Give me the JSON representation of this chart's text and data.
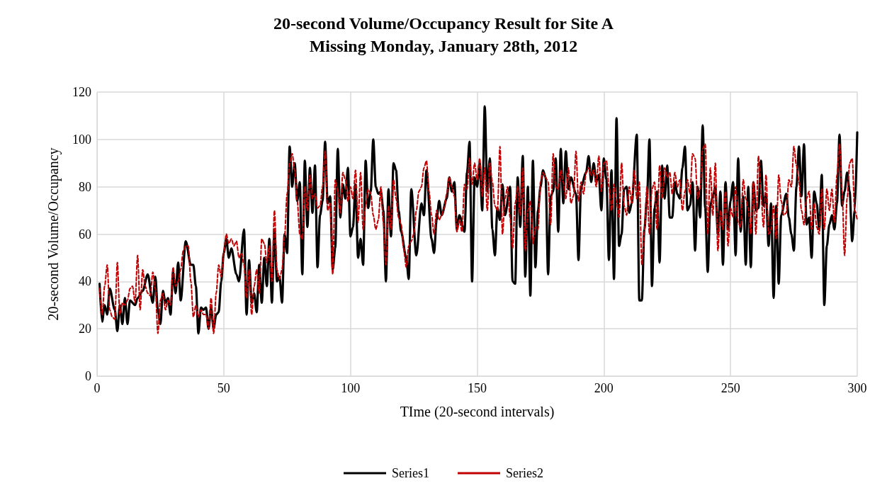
{
  "chart_data": {
    "type": "line",
    "title": "20-second Volume/Occupancy Result for Site A",
    "subtitle": "Missing Monday, January 28th, 2012",
    "xlabel": "TIme (20-second intervals)",
    "ylabel": "20-second Volume/Occupancy",
    "xlim": [
      0,
      300
    ],
    "xticks": [
      0,
      50,
      100,
      150,
      200,
      250,
      300
    ],
    "ylim": [
      0,
      120
    ],
    "yticks": [
      0,
      20,
      40,
      60,
      80,
      100,
      120
    ],
    "grid": true,
    "legend": "bottom",
    "marker": "none",
    "x": [
      1,
      2,
      3,
      4,
      5,
      6,
      7,
      8,
      9,
      10,
      11,
      12,
      13,
      14,
      15,
      16,
      17,
      18,
      19,
      20,
      21,
      22,
      23,
      24,
      25,
      26,
      27,
      28,
      29,
      30,
      31,
      32,
      33,
      34,
      35,
      36,
      37,
      38,
      39,
      40,
      41,
      42,
      43,
      44,
      45,
      46,
      47,
      48,
      49,
      50,
      51,
      52,
      53,
      54,
      55,
      56,
      57,
      58,
      59,
      60,
      61,
      62,
      63,
      64,
      65,
      66,
      67,
      68,
      69,
      70,
      71,
      72,
      73,
      74,
      75,
      76,
      77,
      78,
      79,
      80,
      81,
      82,
      83,
      84,
      85,
      86,
      87,
      88,
      89,
      90,
      91,
      92,
      93,
      94,
      95,
      96,
      97,
      98,
      99,
      100,
      101,
      102,
      103,
      104,
      105,
      106,
      107,
      108,
      109,
      110,
      111,
      112,
      113,
      114,
      115,
      116,
      117,
      118,
      119,
      120,
      121,
      122,
      123,
      124,
      125,
      126,
      127,
      128,
      129,
      130,
      131,
      132,
      133,
      134,
      135,
      136,
      137,
      138,
      139,
      140,
      141,
      142,
      143,
      144,
      145,
      146,
      147,
      148,
      149,
      150,
      151,
      152,
      153,
      154,
      155,
      156,
      157,
      158,
      159,
      160,
      161,
      162,
      163,
      164,
      165,
      166,
      167,
      168,
      169,
      170,
      171,
      172,
      173,
      174,
      175,
      176,
      177,
      178,
      179,
      180,
      181,
      182,
      183,
      184,
      185,
      186,
      187,
      188,
      189,
      190,
      191,
      192,
      193,
      194,
      195,
      196,
      197,
      198,
      199,
      200,
      201,
      202,
      203,
      204,
      205,
      206,
      207,
      208,
      209,
      210,
      211,
      212,
      213,
      214,
      215,
      216,
      217,
      218,
      219,
      220,
      221,
      222,
      223,
      224,
      225,
      226,
      227,
      228,
      229,
      230,
      231,
      232,
      233,
      234,
      235,
      236,
      237,
      238,
      239,
      240,
      241,
      242,
      243,
      244,
      245,
      246,
      247,
      248,
      249,
      250,
      251,
      252,
      253,
      254,
      255,
      256,
      257,
      258,
      259,
      260,
      261,
      262,
      263,
      264,
      265,
      266,
      267,
      268,
      269,
      270,
      271,
      272,
      273,
      274,
      275,
      276,
      277,
      278,
      279,
      280,
      281,
      282,
      283,
      284,
      285,
      286,
      287,
      288,
      289,
      290,
      291,
      292,
      293,
      294,
      295,
      296,
      297,
      298,
      299,
      300
    ],
    "series": [
      {
        "name": "Series1",
        "color": "#000000",
        "line_style": "solid",
        "x": [
          1,
          2,
          3,
          4,
          5,
          7,
          8,
          9,
          10,
          11,
          12,
          13,
          15,
          16,
          18,
          20,
          22,
          23,
          24,
          25,
          26,
          27,
          28,
          29,
          30,
          31,
          32,
          33,
          35,
          37,
          38,
          39,
          40,
          41,
          42,
          43,
          44,
          45,
          46,
          47,
          48,
          49,
          50,
          51,
          52,
          53,
          55,
          56,
          58,
          59,
          60,
          61,
          62,
          63,
          64,
          65,
          66,
          67,
          68,
          69,
          70,
          71,
          72,
          73,
          74,
          75,
          76,
          77,
          78,
          79,
          80,
          81,
          82,
          83,
          84,
          85,
          86,
          87,
          88,
          89,
          90,
          91,
          92,
          93,
          94,
          95,
          96,
          97,
          98,
          99,
          100,
          101,
          102,
          103,
          104,
          105,
          106,
          107,
          108,
          109,
          110,
          111,
          112,
          113,
          114,
          115,
          116,
          117,
          118,
          119,
          120,
          122,
          123,
          124,
          126,
          128,
          129,
          130,
          132,
          133,
          134,
          135,
          136,
          138,
          139,
          140,
          141,
          142,
          143,
          145,
          146,
          147,
          148,
          149,
          150,
          151,
          152,
          153,
          154,
          155,
          156,
          157,
          158,
          159,
          160,
          161,
          163,
          164,
          165,
          166,
          167,
          168,
          169,
          170,
          171,
          172,
          173,
          174,
          175,
          176,
          177,
          178,
          179,
          180,
          181,
          182,
          183,
          184,
          185,
          186,
          187,
          189,
          190,
          191,
          193,
          194,
          195,
          196,
          197,
          198,
          199,
          200,
          201,
          202,
          203,
          204,
          205,
          206,
          207,
          208,
          209,
          210,
          211,
          213,
          214,
          215,
          216,
          217,
          218,
          219,
          220,
          221,
          222,
          223,
          224,
          225,
          226,
          227,
          228,
          229,
          230,
          231,
          232,
          233,
          234,
          235,
          236,
          237,
          238,
          239,
          240,
          241,
          242,
          243,
          244,
          245,
          246,
          247,
          248,
          249,
          250,
          251,
          252,
          253,
          254,
          255,
          256,
          257,
          258,
          259,
          260,
          261,
          262,
          263,
          264,
          265,
          266,
          267,
          268,
          269,
          270,
          272,
          273,
          274,
          275,
          276,
          277,
          278,
          279,
          280,
          281,
          282,
          283,
          284,
          285,
          286,
          287,
          288,
          289,
          290,
          291,
          292,
          293,
          294,
          295,
          296,
          297,
          298,
          299,
          300
        ],
        "values": [
          39,
          23,
          30,
          26,
          37,
          28,
          19,
          30,
          22,
          33,
          22,
          32,
          30,
          33,
          36,
          43,
          31,
          42,
          28,
          22,
          36,
          31,
          33,
          26,
          44,
          35,
          48,
          32,
          57,
          47,
          47,
          38,
          18,
          29,
          28,
          29,
          20,
          29,
          20,
          26,
          27,
          40,
          52,
          58,
          50,
          54,
          43,
          40,
          62,
          26,
          49,
          31,
          35,
          27,
          47,
          31,
          50,
          38,
          58,
          31,
          62,
          40,
          42,
          31,
          60,
          52,
          97,
          80,
          90,
          74,
          82,
          43,
          91,
          63,
          88,
          69,
          89,
          46,
          68,
          74,
          99,
          73,
          76,
          45,
          54,
          96,
          67,
          81,
          75,
          88,
          59,
          63,
          81,
          50,
          58,
          47,
          91,
          71,
          78,
          100,
          80,
          77,
          78,
          70,
          40,
          79,
          59,
          90,
          87,
          70,
          61,
          50,
          41,
          79,
          51,
          73,
          68,
          87,
          58,
          52,
          66,
          74,
          68,
          75,
          84,
          78,
          82,
          62,
          68,
          61,
          86,
          99,
          40,
          84,
          80,
          90,
          70,
          114,
          78,
          92,
          62,
          51,
          71,
          66,
          81,
          68,
          80,
          40,
          39,
          84,
          63,
          93,
          42,
          80,
          34,
          91,
          46,
          70,
          80,
          87,
          84,
          43,
          76,
          78,
          92,
          61,
          96,
          73,
          95,
          79,
          84,
          77,
          49,
          80,
          86,
          93,
          82,
          90,
          82,
          85,
          70,
          92,
          83,
          49,
          87,
          41,
          109,
          55,
          60,
          79,
          80,
          69,
          73,
          102,
          32,
          32,
          62,
          75,
          100,
          38,
          71,
          78,
          48,
          89,
          75,
          89,
          67,
          67,
          82,
          77,
          75,
          88,
          97,
          70,
          72,
          82,
          53,
          80,
          67,
          106,
          71,
          44,
          72,
          76,
          80,
          60,
          78,
          47,
          82,
          62,
          74,
          82,
          51,
          92,
          61,
          76,
          47,
          80,
          46,
          82,
          70,
          71,
          91,
          72,
          77,
          55,
          73,
          33,
          72,
          39,
          68,
          77,
          67,
          60,
          53,
          80,
          97,
          76,
          98,
          64,
          67,
          50,
          78,
          73,
          62,
          85,
          30,
          55,
          64,
          68,
          62,
          73,
          102,
          72,
          78,
          86,
          78,
          57,
          70,
          103
        ]
      },
      {
        "name": "Series2",
        "color": "#c00000",
        "line_style": "dashed",
        "values": [
          37,
          26,
          38,
          47,
          28,
          25,
          24,
          48,
          26,
          31,
          30,
          32,
          37,
          38,
          31,
          51,
          28,
          45,
          38,
          35,
          34,
          44,
          37,
          18,
          32,
          35,
          28,
          32,
          30,
          46,
          38,
          40,
          45,
          53,
          55,
          55,
          40,
          25,
          30,
          25,
          28,
          26,
          26,
          20,
          33,
          18,
          35,
          47,
          42,
          52,
          60,
          56,
          58,
          55,
          57,
          50,
          52,
          47,
          33,
          45,
          26,
          38,
          45,
          35,
          58,
          56,
          48,
          55,
          40,
          70,
          45,
          41,
          45,
          59,
          77,
          90,
          94,
          87,
          74,
          60,
          58,
          80,
          70,
          85,
          75,
          77,
          71,
          72,
          80,
          95,
          70,
          73,
          43,
          83,
          78,
          69,
          86,
          83,
          74,
          80,
          75,
          87,
          65,
          86,
          62,
          72,
          79,
          77,
          68,
          62,
          66,
          80,
          65,
          47,
          72,
          62,
          83,
          75,
          67,
          64,
          54,
          46,
          55,
          57,
          60,
          70,
          78,
          80,
          88,
          91,
          78,
          68,
          60,
          70,
          66,
          68,
          71,
          77,
          84,
          80,
          76,
          61,
          66,
          61,
          81,
          79,
          92,
          81,
          90,
          83,
          92,
          76,
          88,
          70,
          90,
          82,
          72,
          70,
          97,
          60,
          75,
          80,
          67,
          54,
          73,
          80,
          68,
          88,
          53,
          70,
          74,
          56,
          63,
          62,
          82,
          86,
          84,
          82,
          64,
          94,
          80,
          79,
          87,
          82,
          75,
          88,
          73,
          76,
          95,
          74,
          82,
          77,
          86,
          88,
          85,
          87,
          80,
          93,
          78,
          90,
          91,
          80,
          70,
          81,
          74,
          67,
          90,
          72,
          68,
          80,
          73,
          87,
          75,
          82,
          47,
          61,
          80,
          60,
          79,
          82,
          62,
          89,
          75,
          88,
          84,
          86,
          77,
          86,
          80,
          83,
          70,
          78,
          83,
          77,
          94,
          92,
          75,
          79,
          96,
          98,
          60,
          88,
          68,
          90,
          53,
          70,
          62,
          78,
          55,
          71,
          67,
          80,
          65,
          63,
          83,
          75,
          71,
          60,
          82,
          60,
          93,
          77,
          63,
          85,
          60,
          62,
          72,
          58,
          85,
          74,
          68,
          69,
          83,
          80,
          97,
          89,
          82,
          70,
          64,
          75,
          78,
          62,
          73,
          63,
          60,
          79,
          62,
          79,
          70,
          79,
          65,
          85,
          98,
          78,
          51,
          75,
          90,
          92,
          70,
          66
        ]
      }
    ]
  }
}
